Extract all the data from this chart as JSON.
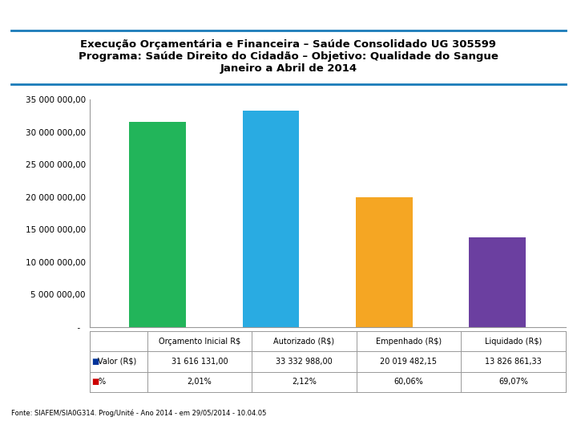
{
  "title_line1": "Execução Orçamentária e Financeira – Saúde Consolidado UG 305599",
  "title_line2": "Programa: Saúde Direito do Cidadão – Objetivo: Qualidade do Sangue",
  "title_line3": "Janeiro a Abril de 2014",
  "categories": [
    "Orçamento Inicial R$",
    "Autorizado (R$)",
    "Empenhado (R$)",
    "Liquidado (R$)"
  ],
  "values": [
    31616131.0,
    33332988.0,
    20019482.15,
    13826861.33
  ],
  "bar_colors": [
    "#22B55A",
    "#29ABE2",
    "#F5A623",
    "#6B3FA0"
  ],
  "ylim": [
    0,
    35000000
  ],
  "yticks": [
    0,
    5000000,
    10000000,
    15000000,
    20000000,
    25000000,
    30000000,
    35000000
  ],
  "valor_labels": [
    "31 616 131,00",
    "33 332 988,00",
    "20 019 482,15",
    "13 826 861,33"
  ],
  "pct_labels": [
    "2,01%",
    "2,12%",
    "60,06%",
    "69,07%"
  ],
  "row_valor": "Valor (R$)",
  "row_pct": "%",
  "footer": "Fonte: SIAFEM/SIA0G314. Prog/Unité - Ano 2014 - em 29/05/2014 - 10.04.05",
  "bg_color": "#FFFFFF",
  "title_fontsize": 9.5,
  "tick_fontsize": 7.5,
  "table_fontsize": 7,
  "legend_color_valor": "#003399",
  "legend_color_pct": "#CC0000",
  "header_line_color": "#1A7BB9",
  "bar_width": 0.5
}
